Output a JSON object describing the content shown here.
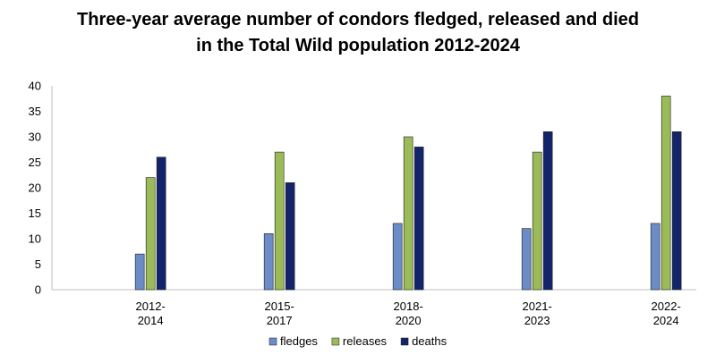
{
  "chart_data": {
    "type": "bar",
    "title_lines": [
      "Three-year average number of condors fledged, released and died",
      "in the Total Wild population 2012-2024"
    ],
    "categories": [
      [
        "2012-",
        "2014"
      ],
      [
        "2015-",
        "2017"
      ],
      [
        "2018-",
        "2020"
      ],
      [
        "2021-",
        "2023"
      ],
      [
        "2022-",
        "2024"
      ]
    ],
    "series": [
      {
        "name": "fledges",
        "color": "#6b8cc7",
        "values": [
          7,
          11,
          13,
          12,
          13
        ]
      },
      {
        "name": "releases",
        "color": "#9bbb59",
        "values": [
          22,
          27,
          30,
          27,
          38
        ]
      },
      {
        "name": "deaths",
        "color": "#13246b",
        "values": [
          26,
          21,
          28,
          31,
          31
        ]
      }
    ],
    "ylim": [
      0,
      40
    ],
    "yticks": [
      0,
      5,
      10,
      15,
      20,
      25,
      30,
      35,
      40
    ],
    "grid": false,
    "legend": "bottom"
  }
}
